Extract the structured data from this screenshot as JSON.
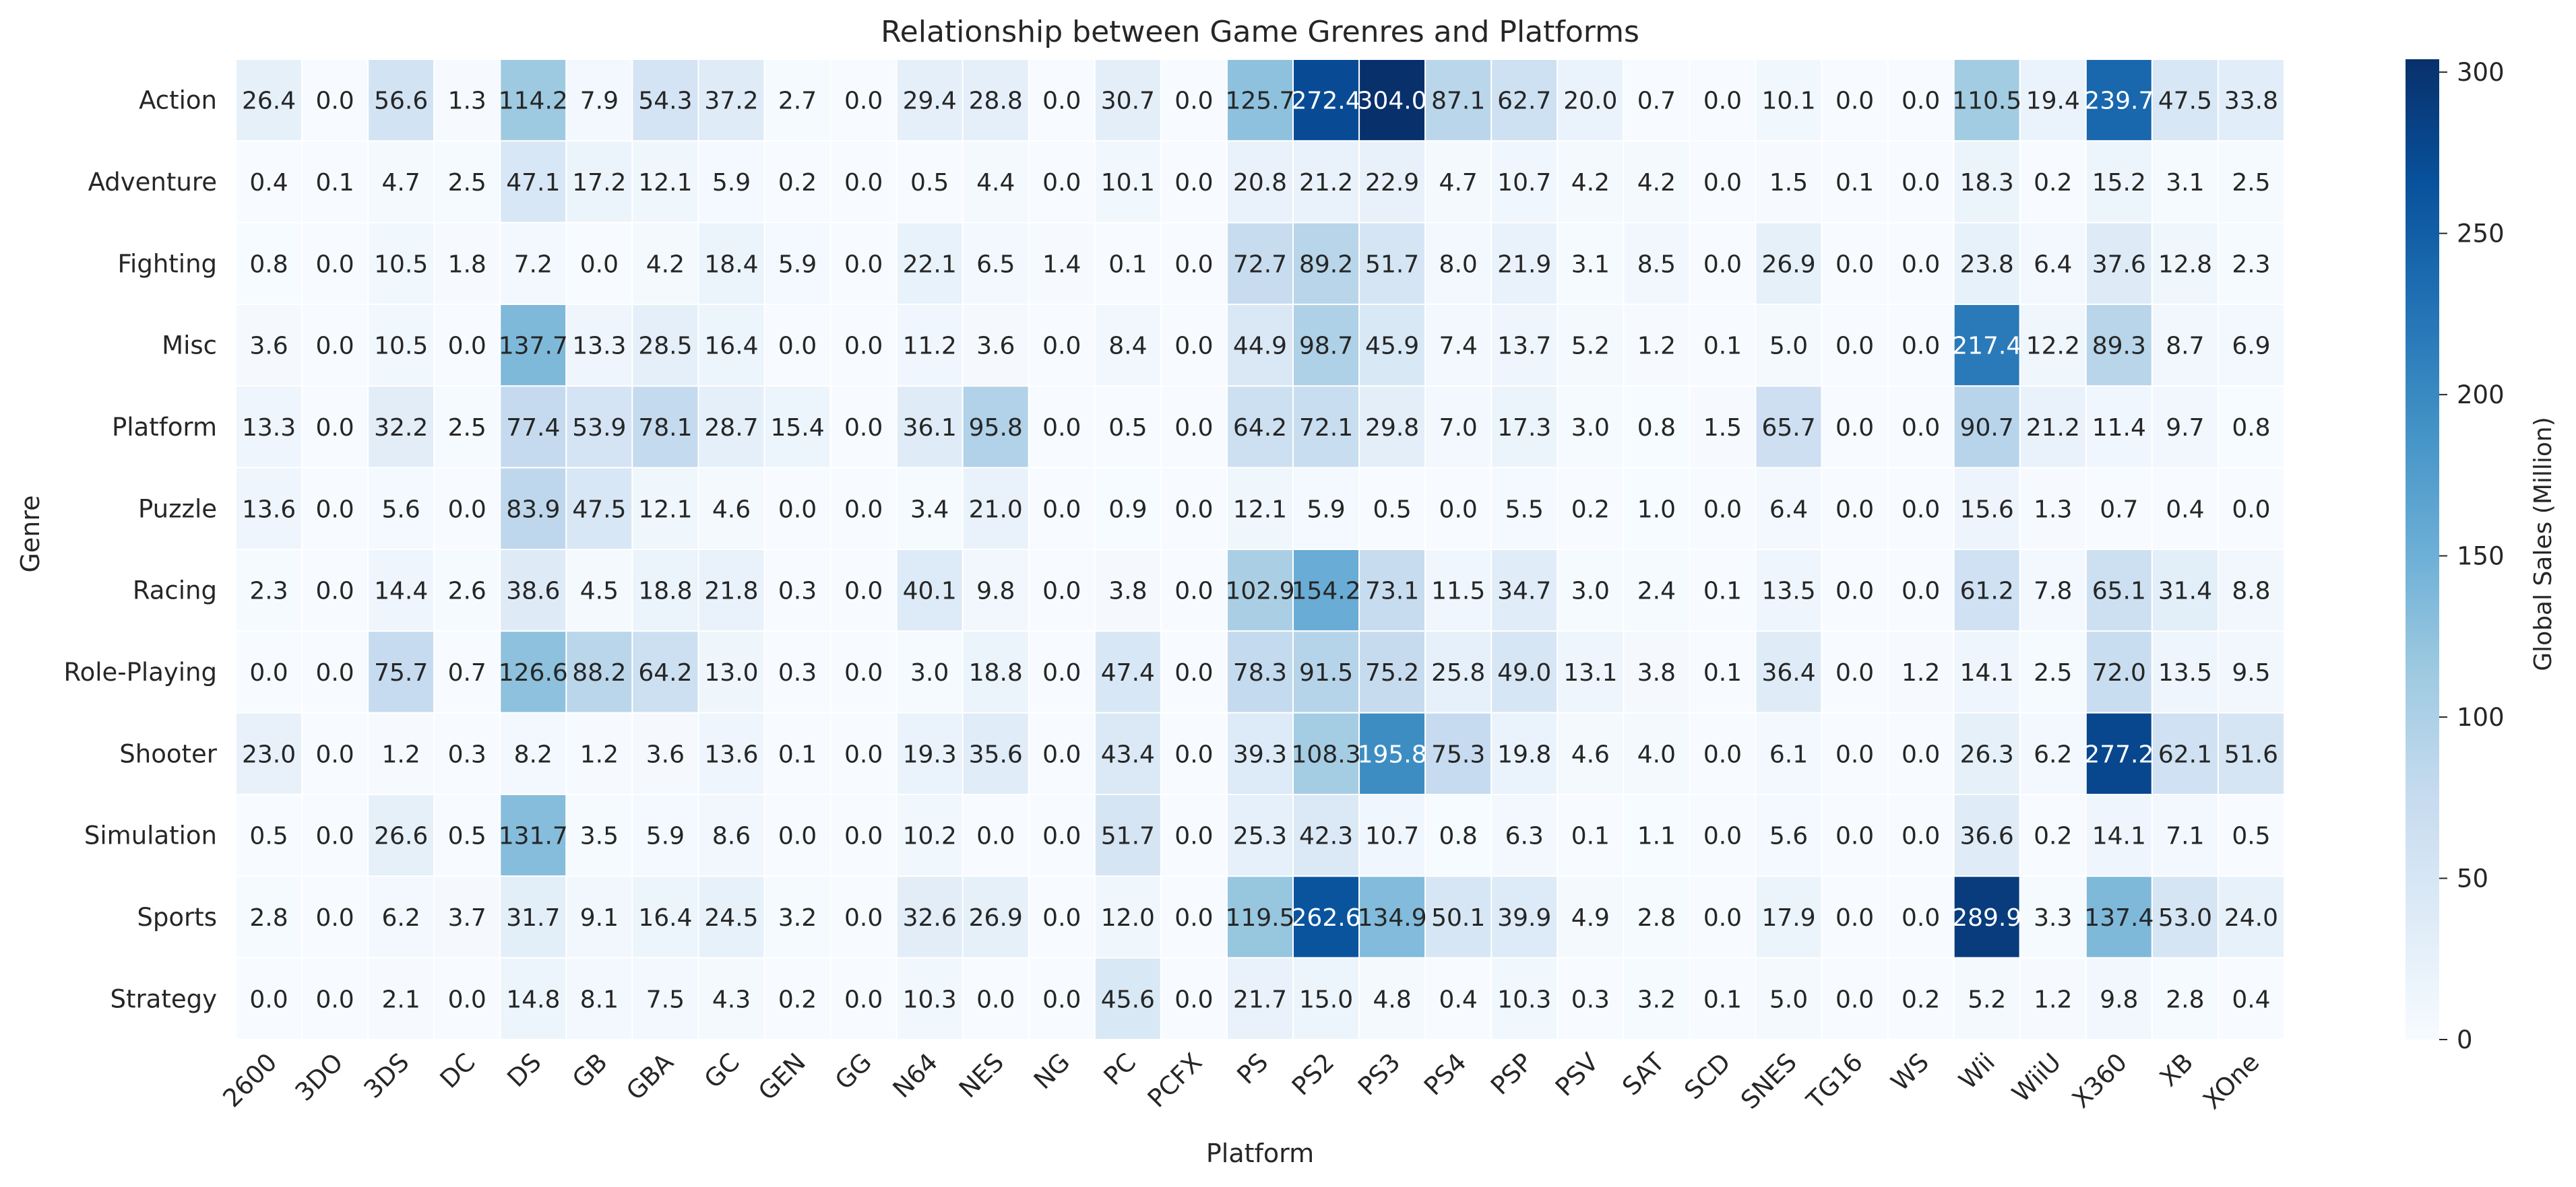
{
  "chart_data": {
    "type": "heatmap",
    "title": "Relationship between Game Grenres and Platforms",
    "xlabel": "Platform",
    "ylabel": "Genre",
    "colorbar_label": "Global Sales (Million)",
    "colorbar_ticks": [
      0,
      50,
      100,
      150,
      200,
      250,
      300
    ],
    "value_range": [
      0,
      304.0
    ],
    "colormap": "Blues",
    "colormap_stops": [
      "#f7fbff",
      "#deebf7",
      "#c6dbef",
      "#9ecae1",
      "#6baed6",
      "#4292c6",
      "#2171b5",
      "#08519c",
      "#08306b"
    ],
    "grid_line_color": "#ffffff",
    "x_categories": [
      "2600",
      "3DO",
      "3DS",
      "DC",
      "DS",
      "GB",
      "GBA",
      "GC",
      "GEN",
      "GG",
      "N64",
      "NES",
      "NG",
      "PC",
      "PCFX",
      "PS",
      "PS2",
      "PS3",
      "PS4",
      "PSP",
      "PSV",
      "SAT",
      "SCD",
      "SNES",
      "TG16",
      "WS",
      "Wii",
      "WiiU",
      "X360",
      "XB",
      "XOne"
    ],
    "y_categories": [
      "Action",
      "Adventure",
      "Fighting",
      "Misc",
      "Platform",
      "Puzzle",
      "Racing",
      "Role-Playing",
      "Shooter",
      "Simulation",
      "Sports",
      "Strategy"
    ],
    "values": [
      [
        26.4,
        0.0,
        56.6,
        1.3,
        114.2,
        7.9,
        54.3,
        37.2,
        2.7,
        0.0,
        29.4,
        28.8,
        0.0,
        30.7,
        0.0,
        125.7,
        272.4,
        304.0,
        87.1,
        62.7,
        20.0,
        0.7,
        0.0,
        10.1,
        0.0,
        0.0,
        110.5,
        19.4,
        239.7,
        47.5,
        33.8
      ],
      [
        0.4,
        0.1,
        4.7,
        2.5,
        47.1,
        17.2,
        12.1,
        5.9,
        0.2,
        0.0,
        0.5,
        4.4,
        0.0,
        10.1,
        0.0,
        20.8,
        21.2,
        22.9,
        4.7,
        10.7,
        4.2,
        4.2,
        0.0,
        1.5,
        0.1,
        0.0,
        18.3,
        0.2,
        15.2,
        3.1,
        2.5
      ],
      [
        0.8,
        0.0,
        10.5,
        1.8,
        7.2,
        0.0,
        4.2,
        18.4,
        5.9,
        0.0,
        22.1,
        6.5,
        1.4,
        0.1,
        0.0,
        72.7,
        89.2,
        51.7,
        8.0,
        21.9,
        3.1,
        8.5,
        0.0,
        26.9,
        0.0,
        0.0,
        23.8,
        6.4,
        37.6,
        12.8,
        2.3
      ],
      [
        3.6,
        0.0,
        10.5,
        0.0,
        137.7,
        13.3,
        28.5,
        16.4,
        0.0,
        0.0,
        11.2,
        3.6,
        0.0,
        8.4,
        0.0,
        44.9,
        98.7,
        45.9,
        7.4,
        13.7,
        5.2,
        1.2,
        0.1,
        5.0,
        0.0,
        0.0,
        217.4,
        12.2,
        89.3,
        8.7,
        6.9
      ],
      [
        13.3,
        0.0,
        32.2,
        2.5,
        77.4,
        53.9,
        78.1,
        28.7,
        15.4,
        0.0,
        36.1,
        95.8,
        0.0,
        0.5,
        0.0,
        64.2,
        72.1,
        29.8,
        7.0,
        17.3,
        3.0,
        0.8,
        1.5,
        65.7,
        0.0,
        0.0,
        90.7,
        21.2,
        11.4,
        9.7,
        0.8
      ],
      [
        13.6,
        0.0,
        5.6,
        0.0,
        83.9,
        47.5,
        12.1,
        4.6,
        0.0,
        0.0,
        3.4,
        21.0,
        0.0,
        0.9,
        0.0,
        12.1,
        5.9,
        0.5,
        0.0,
        5.5,
        0.2,
        1.0,
        0.0,
        6.4,
        0.0,
        0.0,
        15.6,
        1.3,
        0.7,
        0.4,
        0.0
      ],
      [
        2.3,
        0.0,
        14.4,
        2.6,
        38.6,
        4.5,
        18.8,
        21.8,
        0.3,
        0.0,
        40.1,
        9.8,
        0.0,
        3.8,
        0.0,
        102.9,
        154.2,
        73.1,
        11.5,
        34.7,
        3.0,
        2.4,
        0.1,
        13.5,
        0.0,
        0.0,
        61.2,
        7.8,
        65.1,
        31.4,
        8.8
      ],
      [
        0.0,
        0.0,
        75.7,
        0.7,
        126.6,
        88.2,
        64.2,
        13.0,
        0.3,
        0.0,
        3.0,
        18.8,
        0.0,
        47.4,
        0.0,
        78.3,
        91.5,
        75.2,
        25.8,
        49.0,
        13.1,
        3.8,
        0.1,
        36.4,
        0.0,
        1.2,
        14.1,
        2.5,
        72.0,
        13.5,
        9.5
      ],
      [
        23.0,
        0.0,
        1.2,
        0.3,
        8.2,
        1.2,
        3.6,
        13.6,
        0.1,
        0.0,
        19.3,
        35.6,
        0.0,
        43.4,
        0.0,
        39.3,
        108.3,
        195.8,
        75.3,
        19.8,
        4.6,
        4.0,
        0.0,
        6.1,
        0.0,
        0.0,
        26.3,
        6.2,
        277.2,
        62.1,
        51.6
      ],
      [
        0.5,
        0.0,
        26.6,
        0.5,
        131.7,
        3.5,
        5.9,
        8.6,
        0.0,
        0.0,
        10.2,
        0.0,
        0.0,
        51.7,
        0.0,
        25.3,
        42.3,
        10.7,
        0.8,
        6.3,
        0.1,
        1.1,
        0.0,
        5.6,
        0.0,
        0.0,
        36.6,
        0.2,
        14.1,
        7.1,
        0.5
      ],
      [
        2.8,
        0.0,
        6.2,
        3.7,
        31.7,
        9.1,
        16.4,
        24.5,
        3.2,
        0.0,
        32.6,
        26.9,
        0.0,
        12.0,
        0.0,
        119.5,
        262.6,
        134.9,
        50.1,
        39.9,
        4.9,
        2.8,
        0.0,
        17.9,
        0.0,
        0.0,
        289.9,
        3.3,
        137.4,
        53.0,
        24.0
      ],
      [
        0.0,
        0.0,
        2.1,
        0.0,
        14.8,
        8.1,
        7.5,
        4.3,
        0.2,
        0.0,
        10.3,
        0.0,
        0.0,
        45.6,
        0.0,
        21.7,
        15.0,
        4.8,
        0.4,
        10.3,
        0.3,
        3.2,
        0.1,
        5.0,
        0.0,
        0.2,
        5.2,
        1.2,
        9.8,
        2.8,
        0.4
      ]
    ]
  }
}
